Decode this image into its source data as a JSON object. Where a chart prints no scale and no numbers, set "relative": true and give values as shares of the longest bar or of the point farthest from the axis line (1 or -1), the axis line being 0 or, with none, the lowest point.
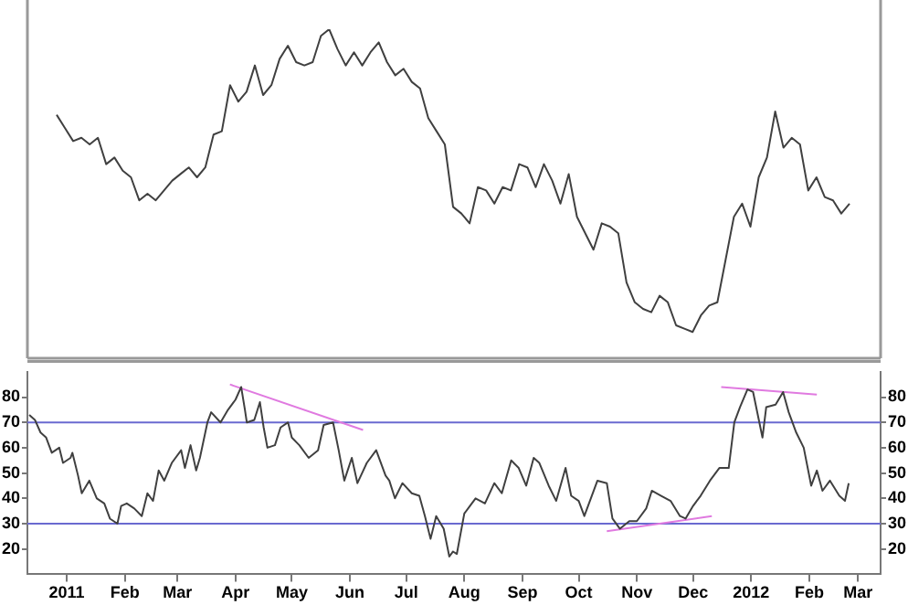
{
  "chart_data": [
    {
      "type": "line",
      "relative": true,
      "tick_labels": false,
      "categories": [
        null,
        null,
        null,
        null,
        null,
        null,
        null,
        null,
        null,
        null,
        null,
        null,
        null,
        null,
        null,
        null,
        null,
        null,
        null,
        null,
        null,
        null,
        null,
        null,
        null,
        null,
        null,
        null,
        null,
        null,
        null,
        null,
        null,
        null,
        null,
        null,
        null,
        null,
        null,
        null,
        null,
        null,
        null,
        null,
        null,
        null,
        null,
        null,
        null,
        null,
        null,
        null,
        null,
        null,
        null,
        null,
        null,
        null,
        null,
        null,
        null,
        null,
        null,
        null,
        null,
        null,
        null,
        null,
        null,
        null,
        null,
        null,
        null,
        null,
        null,
        null,
        null,
        null,
        null,
        null,
        null,
        null,
        null,
        null,
        null,
        null,
        null,
        null,
        null,
        null,
        null,
        null,
        null,
        null,
        null,
        null,
        null
      ],
      "series": [
        {
          "color": "#404040",
          "values": [
            0.74,
            0.7,
            0.66,
            0.67,
            0.65,
            0.67,
            0.59,
            0.61,
            0.57,
            0.55,
            0.48,
            0.5,
            0.48,
            0.51,
            0.54,
            0.56,
            0.58,
            0.55,
            0.58,
            0.68,
            0.69,
            0.83,
            0.78,
            0.81,
            0.89,
            0.8,
            0.83,
            0.91,
            0.95,
            0.9,
            0.89,
            0.9,
            0.98,
            1,
            0.94,
            0.89,
            0.93,
            0.89,
            0.93,
            0.96,
            0.9,
            0.86,
            0.88,
            0.84,
            0.82,
            0.73,
            0.69,
            0.65,
            0.46,
            0.44,
            0.41,
            0.52,
            0.51,
            0.47,
            0.52,
            0.51,
            0.59,
            0.58,
            0.52,
            0.59,
            0.54,
            0.47,
            0.56,
            0.43,
            0.38,
            0.33,
            0.41,
            0.4,
            0.38,
            0.23,
            0.17,
            0.15,
            0.14,
            0.19,
            0.17,
            0.1,
            0.09,
            0.08,
            0.13,
            0.16,
            0.17,
            0.3,
            0.43,
            0.47,
            0.4,
            0.55,
            0.61,
            0.75,
            0.64,
            0.67,
            0.65,
            0.51,
            0.55,
            0.49,
            0.48,
            0.44,
            0.47
          ]
        }
      ]
    },
    {
      "type": "line",
      "tick_labels": "xy",
      "xlim": [
        "2010-12-25",
        "2012-03-24"
      ],
      "ylim": [
        10,
        90
      ],
      "yticks": [
        20,
        30,
        40,
        50,
        60,
        70,
        80
      ],
      "y2lim": [
        10,
        90
      ],
      "y2ticks": [
        20,
        30,
        40,
        50,
        60,
        70,
        80
      ],
      "xticks": [
        {
          "value": "2011-01-15",
          "label": "2011"
        },
        {
          "value": "2011-02-15",
          "label": "Feb"
        },
        {
          "value": "2011-03-15",
          "label": "Mar"
        },
        {
          "value": "2011-04-15",
          "label": "Apr"
        },
        {
          "value": "2011-05-15",
          "label": "May"
        },
        {
          "value": "2011-06-15",
          "label": "Jun"
        },
        {
          "value": "2011-07-15",
          "label": "Jul"
        },
        {
          "value": "2011-08-15",
          "label": "Aug"
        },
        {
          "value": "2011-09-15",
          "label": "Sep"
        },
        {
          "value": "2011-10-15",
          "label": "Oct"
        },
        {
          "value": "2011-11-15",
          "label": "Nov"
        },
        {
          "value": "2011-12-15",
          "label": "Dec"
        },
        {
          "value": "2012-01-15",
          "label": "2012"
        },
        {
          "value": "2012-02-15",
          "label": "Feb"
        },
        {
          "value": "2012-03-12",
          "label": "Mar"
        }
      ],
      "ref_lines": [
        {
          "axis": "y",
          "value": 70,
          "color": "#6a6ad0"
        },
        {
          "axis": "y",
          "value": 30,
          "color": "#6a6ad0"
        }
      ],
      "series": [
        {
          "color": "#404040",
          "x": [
            "2010-12-26",
            "2010-12-29",
            "2011-01-01",
            "2011-01-04",
            "2011-01-07",
            "2011-01-11",
            "2011-01-13",
            "2011-01-17",
            "2011-01-18",
            "2011-01-21",
            "2011-01-23",
            "2011-01-27",
            "2011-01-31",
            "2011-02-04",
            "2011-02-07",
            "2011-02-11",
            "2011-02-13",
            "2011-02-16",
            "2011-02-20",
            "2011-02-24",
            "2011-02-27",
            "2011-03-02",
            "2011-03-05",
            "2011-03-08",
            "2011-03-12",
            "2011-03-17",
            "2011-03-19",
            "2011-03-22",
            "2011-03-25",
            "2011-03-27",
            "2011-03-31",
            "2011-04-02",
            "2011-04-07",
            "2011-04-11",
            "2011-04-15",
            "2011-04-18",
            "2011-04-20",
            "2011-04-21",
            "2011-04-25",
            "2011-04-28",
            "2011-04-30",
            "2011-05-02",
            "2011-05-06",
            "2011-05-09",
            "2011-05-13",
            "2011-05-15",
            "2011-05-19",
            "2011-05-24",
            "2011-05-29",
            "2011-06-01",
            "2011-06-06",
            "2011-06-09",
            "2011-06-12",
            "2011-06-16",
            "2011-06-19",
            "2011-06-24",
            "2011-06-29",
            "2011-07-04",
            "2011-07-06",
            "2011-07-09",
            "2011-07-13",
            "2011-07-18",
            "2011-07-22",
            "2011-07-25",
            "2011-07-28",
            "2011-07-31",
            "2011-08-04",
            "2011-08-07",
            "2011-08-09",
            "2011-08-11",
            "2011-08-15",
            "2011-08-18",
            "2011-08-21",
            "2011-08-26",
            "2011-08-31",
            "2011-09-04",
            "2011-09-09",
            "2011-09-13",
            "2011-09-17",
            "2011-09-21",
            "2011-09-24",
            "2011-09-29",
            "2011-10-03",
            "2011-10-08",
            "2011-10-11",
            "2011-10-15",
            "2011-10-18",
            "2011-10-25",
            "2011-10-30",
            "2011-11-02",
            "2011-11-06",
            "2011-11-11",
            "2011-11-15",
            "2011-11-20",
            "2011-11-23",
            "2011-11-28",
            "2011-12-03",
            "2011-12-08",
            "2011-12-11",
            "2011-12-15",
            "2011-12-19",
            "2011-12-24",
            "2011-12-29",
            "2012-01-03",
            "2012-01-06",
            "2012-01-09",
            "2012-01-13",
            "2012-01-16",
            "2012-01-21",
            "2012-01-23",
            "2012-01-28",
            "2012-02-01",
            "2012-02-04",
            "2012-02-08",
            "2012-02-12",
            "2012-02-16",
            "2012-02-19",
            "2012-02-22",
            "2012-02-26",
            "2012-03-02",
            "2012-03-05",
            "2012-03-07"
          ],
          "values": [
            73,
            71,
            66,
            64,
            58,
            60,
            54,
            56,
            58,
            49,
            42,
            47,
            40,
            38,
            32,
            30,
            37,
            38,
            36,
            33,
            42,
            39,
            51,
            47,
            54,
            59,
            52,
            61,
            51,
            56,
            70,
            74,
            70,
            75,
            79,
            84,
            75,
            70,
            71,
            78,
            68,
            60,
            61,
            68,
            70,
            64,
            61,
            56,
            59,
            69,
            70,
            59,
            47,
            56,
            46,
            54,
            59,
            49,
            47,
            40,
            46,
            42,
            41,
            33,
            24,
            33,
            28,
            17,
            19,
            18,
            34,
            37,
            40,
            38,
            46,
            42,
            55,
            52,
            45,
            56,
            54,
            45,
            39,
            52,
            41,
            39,
            33,
            47,
            46,
            32,
            28,
            31,
            31,
            36,
            43,
            41,
            39,
            33,
            32,
            37,
            41,
            47,
            52,
            52,
            70,
            76,
            83,
            82,
            64,
            76,
            77,
            82,
            74,
            66,
            60,
            45,
            51,
            43,
            47,
            41,
            39,
            46
          ]
        },
        {
          "type": "line",
          "color": "#e07ae0",
          "x": [
            "2011-04-12",
            "2011-06-22"
          ],
          "values": [
            85,
            67
          ]
        },
        {
          "type": "line",
          "color": "#e07ae0",
          "x": [
            "2011-10-30",
            "2011-12-25"
          ],
          "values": [
            27,
            33
          ]
        },
        {
          "type": "line",
          "color": "#e07ae0",
          "x": [
            "2011-12-30",
            "2012-02-19"
          ],
          "values": [
            84,
            81
          ]
        }
      ]
    }
  ]
}
